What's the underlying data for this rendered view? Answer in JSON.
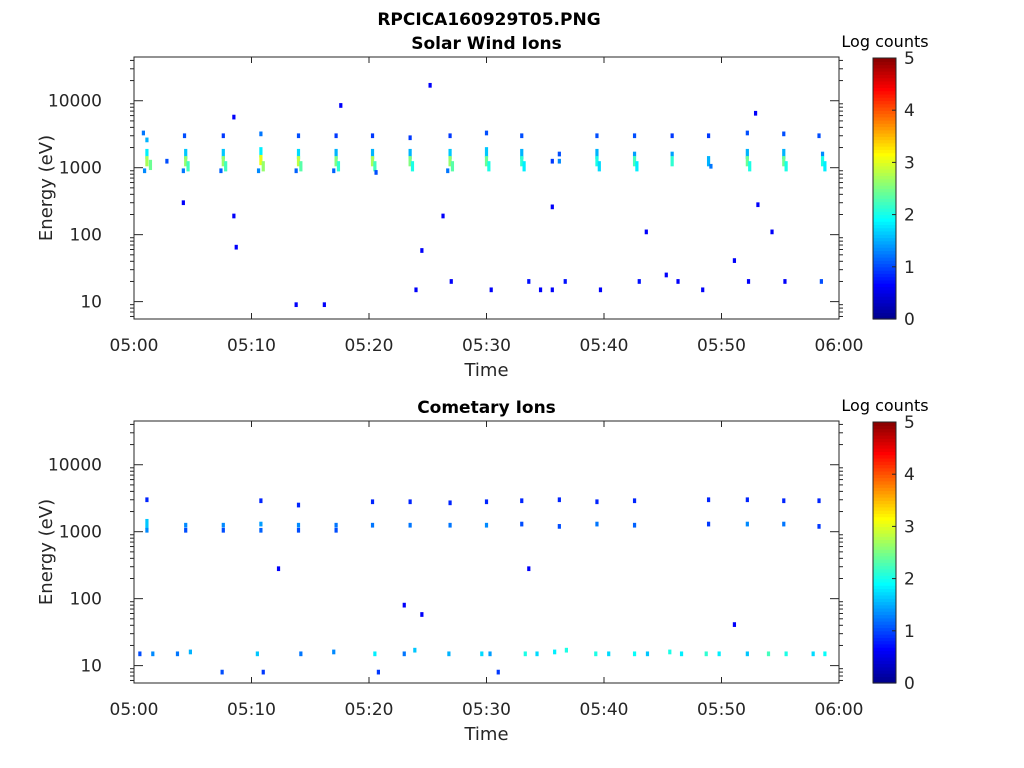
{
  "figure_title": "RPCICA160929T05.PNG",
  "colormap": {
    "label": "Log counts",
    "ticks": [
      "0",
      "1",
      "2",
      "3",
      "4",
      "5"
    ],
    "colors": [
      "#00008f",
      "#0000ff",
      "#0080ff",
      "#00ffff",
      "#80ff80",
      "#ffff00",
      "#ff8000",
      "#ff0000",
      "#800000"
    ]
  },
  "chart_data": [
    {
      "type": "heatmap",
      "title": "Solar Wind Ions",
      "xlabel": "Time",
      "ylabel": "Energy (eV)",
      "x_ticks": [
        "05:00",
        "05:10",
        "05:20",
        "05:30",
        "05:40",
        "05:50",
        "06:00"
      ],
      "xlim_minutes": [
        0,
        60
      ],
      "y_scale": "log",
      "ylim": [
        5.5,
        45000
      ],
      "y_ticks": [
        "10",
        "100",
        "1000",
        "10000"
      ],
      "colorbar": {
        "label": "Log counts",
        "range": [
          0,
          5
        ]
      },
      "grid": false,
      "sweep_times_min": [
        1.1,
        4.4,
        7.6,
        10.8,
        14.0,
        17.2,
        20.3,
        23.5,
        26.9,
        30.0,
        33.0,
        36.2,
        39.4,
        42.6,
        45.8,
        48.9,
        52.2,
        55.3,
        58.3
      ],
      "cells": [
        {
          "t": 0.8,
          "e": 3300,
          "v": 1.2
        },
        {
          "t": 1.1,
          "e": 2600,
          "v": 1.5
        },
        {
          "t": 1.1,
          "e": 1600,
          "v": 1.8
        },
        {
          "t": 1.1,
          "e": 1250,
          "v": 2.7
        },
        {
          "t": 1.4,
          "e": 1100,
          "v": 2.4
        },
        {
          "t": 0.9,
          "e": 900,
          "v": 1.3
        },
        {
          "t": 2.8,
          "e": 1250,
          "v": 1.0
        },
        {
          "t": 4.3,
          "e": 3000,
          "v": 1.0
        },
        {
          "t": 4.4,
          "e": 1600,
          "v": 1.6
        },
        {
          "t": 4.4,
          "e": 1250,
          "v": 2.6
        },
        {
          "t": 4.6,
          "e": 1050,
          "v": 2.2
        },
        {
          "t": 4.2,
          "e": 900,
          "v": 1.2
        },
        {
          "t": 7.6,
          "e": 3000,
          "v": 0.9
        },
        {
          "t": 7.6,
          "e": 1600,
          "v": 1.6
        },
        {
          "t": 7.6,
          "e": 1250,
          "v": 2.6
        },
        {
          "t": 7.8,
          "e": 1050,
          "v": 2.2
        },
        {
          "t": 7.4,
          "e": 900,
          "v": 1.1
        },
        {
          "t": 10.8,
          "e": 3200,
          "v": 1.2
        },
        {
          "t": 10.8,
          "e": 1700,
          "v": 1.8
        },
        {
          "t": 10.8,
          "e": 1300,
          "v": 3.0
        },
        {
          "t": 11.0,
          "e": 1050,
          "v": 2.6
        },
        {
          "t": 10.6,
          "e": 900,
          "v": 1.3
        },
        {
          "t": 14.0,
          "e": 3000,
          "v": 1.0
        },
        {
          "t": 14.0,
          "e": 1600,
          "v": 1.7
        },
        {
          "t": 14.0,
          "e": 1250,
          "v": 2.8
        },
        {
          "t": 14.2,
          "e": 1050,
          "v": 2.3
        },
        {
          "t": 13.8,
          "e": 900,
          "v": 1.1
        },
        {
          "t": 17.2,
          "e": 3000,
          "v": 0.9
        },
        {
          "t": 17.2,
          "e": 1600,
          "v": 1.5
        },
        {
          "t": 17.2,
          "e": 1250,
          "v": 2.5
        },
        {
          "t": 17.4,
          "e": 1050,
          "v": 2.1
        },
        {
          "t": 17.0,
          "e": 900,
          "v": 1.1
        },
        {
          "t": 20.3,
          "e": 3000,
          "v": 0.9
        },
        {
          "t": 20.3,
          "e": 1600,
          "v": 1.5
        },
        {
          "t": 20.3,
          "e": 1250,
          "v": 2.7
        },
        {
          "t": 20.5,
          "e": 1050,
          "v": 2.2
        },
        {
          "t": 20.6,
          "e": 850,
          "v": 1.0
        },
        {
          "t": 23.5,
          "e": 2800,
          "v": 0.9
        },
        {
          "t": 23.5,
          "e": 1600,
          "v": 1.5
        },
        {
          "t": 23.5,
          "e": 1250,
          "v": 2.5
        },
        {
          "t": 23.7,
          "e": 1050,
          "v": 2.0
        },
        {
          "t": 26.9,
          "e": 3000,
          "v": 0.9
        },
        {
          "t": 26.9,
          "e": 1600,
          "v": 1.6
        },
        {
          "t": 26.9,
          "e": 1250,
          "v": 2.6
        },
        {
          "t": 27.1,
          "e": 1050,
          "v": 2.3
        },
        {
          "t": 26.7,
          "e": 900,
          "v": 1.2
        },
        {
          "t": 30.0,
          "e": 3300,
          "v": 1.0
        },
        {
          "t": 30.0,
          "e": 1700,
          "v": 1.6
        },
        {
          "t": 30.0,
          "e": 1250,
          "v": 2.4
        },
        {
          "t": 30.2,
          "e": 1050,
          "v": 2.0
        },
        {
          "t": 33.0,
          "e": 3000,
          "v": 1.0
        },
        {
          "t": 33.0,
          "e": 1600,
          "v": 1.5
        },
        {
          "t": 33.0,
          "e": 1250,
          "v": 2.1
        },
        {
          "t": 33.2,
          "e": 1050,
          "v": 1.8
        },
        {
          "t": 36.2,
          "e": 1600,
          "v": 1.0
        },
        {
          "t": 36.2,
          "e": 1250,
          "v": 1.3
        },
        {
          "t": 35.6,
          "e": 1250,
          "v": 0.9
        },
        {
          "t": 39.4,
          "e": 3000,
          "v": 1.0
        },
        {
          "t": 39.4,
          "e": 1600,
          "v": 1.5
        },
        {
          "t": 39.4,
          "e": 1250,
          "v": 2.0
        },
        {
          "t": 39.6,
          "e": 1050,
          "v": 1.7
        },
        {
          "t": 42.6,
          "e": 3000,
          "v": 1.0
        },
        {
          "t": 42.6,
          "e": 1600,
          "v": 1.4
        },
        {
          "t": 42.6,
          "e": 1250,
          "v": 2.2
        },
        {
          "t": 42.8,
          "e": 1050,
          "v": 1.8
        },
        {
          "t": 45.8,
          "e": 3000,
          "v": 0.9
        },
        {
          "t": 45.8,
          "e": 1600,
          "v": 1.4
        },
        {
          "t": 45.8,
          "e": 1250,
          "v": 2.1
        },
        {
          "t": 48.9,
          "e": 3000,
          "v": 0.9
        },
        {
          "t": 48.9,
          "e": 1250,
          "v": 1.5
        },
        {
          "t": 49.1,
          "e": 1050,
          "v": 1.2
        },
        {
          "t": 52.2,
          "e": 3300,
          "v": 1.0
        },
        {
          "t": 52.2,
          "e": 1600,
          "v": 1.5
        },
        {
          "t": 52.2,
          "e": 1250,
          "v": 2.4
        },
        {
          "t": 52.4,
          "e": 1050,
          "v": 2.0
        },
        {
          "t": 55.3,
          "e": 3200,
          "v": 1.0
        },
        {
          "t": 55.3,
          "e": 1600,
          "v": 1.5
        },
        {
          "t": 55.3,
          "e": 1250,
          "v": 2.4
        },
        {
          "t": 55.5,
          "e": 1050,
          "v": 2.0
        },
        {
          "t": 58.3,
          "e": 3000,
          "v": 1.0
        },
        {
          "t": 58.6,
          "e": 1600,
          "v": 1.3
        },
        {
          "t": 58.6,
          "e": 1250,
          "v": 2.0
        },
        {
          "t": 58.8,
          "e": 1050,
          "v": 1.8
        },
        {
          "t": 8.5,
          "e": 5700,
          "v": 0.6
        },
        {
          "t": 17.6,
          "e": 8500,
          "v": 0.6
        },
        {
          "t": 25.2,
          "e": 17000,
          "v": 0.6
        },
        {
          "t": 52.9,
          "e": 6500,
          "v": 0.6
        },
        {
          "t": 4.2,
          "e": 300,
          "v": 0.6
        },
        {
          "t": 8.5,
          "e": 190,
          "v": 0.6
        },
        {
          "t": 8.7,
          "e": 65,
          "v": 0.6
        },
        {
          "t": 26.3,
          "e": 190,
          "v": 0.6
        },
        {
          "t": 35.6,
          "e": 260,
          "v": 0.6
        },
        {
          "t": 43.6,
          "e": 110,
          "v": 0.6
        },
        {
          "t": 53.1,
          "e": 280,
          "v": 0.6
        },
        {
          "t": 54.3,
          "e": 110,
          "v": 0.6
        },
        {
          "t": 24.5,
          "e": 58,
          "v": 0.6
        },
        {
          "t": 13.8,
          "e": 9,
          "v": 0.6
        },
        {
          "t": 16.2,
          "e": 9,
          "v": 0.6
        },
        {
          "t": 24.0,
          "e": 15,
          "v": 0.6
        },
        {
          "t": 27.0,
          "e": 20,
          "v": 0.6
        },
        {
          "t": 30.4,
          "e": 15,
          "v": 0.6
        },
        {
          "t": 33.6,
          "e": 20,
          "v": 0.7
        },
        {
          "t": 34.6,
          "e": 15,
          "v": 0.6
        },
        {
          "t": 35.6,
          "e": 15,
          "v": 0.6
        },
        {
          "t": 36.7,
          "e": 20,
          "v": 0.7
        },
        {
          "t": 39.7,
          "e": 15,
          "v": 0.6
        },
        {
          "t": 43.0,
          "e": 20,
          "v": 0.7
        },
        {
          "t": 45.3,
          "e": 25,
          "v": 0.6
        },
        {
          "t": 46.3,
          "e": 20,
          "v": 0.6
        },
        {
          "t": 48.4,
          "e": 15,
          "v": 0.6
        },
        {
          "t": 51.1,
          "e": 41,
          "v": 0.6
        },
        {
          "t": 52.3,
          "e": 20,
          "v": 0.6
        },
        {
          "t": 55.4,
          "e": 20,
          "v": 0.6
        },
        {
          "t": 58.5,
          "e": 20,
          "v": 1.0
        }
      ]
    },
    {
      "type": "heatmap",
      "title": "Cometary Ions",
      "xlabel": "Time",
      "ylabel": "Energy (eV)",
      "x_ticks": [
        "05:00",
        "05:10",
        "05:20",
        "05:30",
        "05:40",
        "05:50",
        "06:00"
      ],
      "xlim_minutes": [
        0,
        60
      ],
      "y_scale": "log",
      "ylim": [
        5.5,
        45000
      ],
      "y_ticks": [
        "10",
        "100",
        "1000",
        "10000"
      ],
      "colorbar": {
        "label": "Log counts",
        "range": [
          0,
          5
        ]
      },
      "grid": false,
      "cells": [
        {
          "t": 1.1,
          "e": 3000,
          "v": 0.8
        },
        {
          "t": 1.1,
          "e": 1300,
          "v": 1.6
        },
        {
          "t": 1.1,
          "e": 1050,
          "v": 1.3
        },
        {
          "t": 4.4,
          "e": 1250,
          "v": 1.3
        },
        {
          "t": 4.4,
          "e": 1050,
          "v": 1.0
        },
        {
          "t": 7.6,
          "e": 1250,
          "v": 1.3
        },
        {
          "t": 7.6,
          "e": 1050,
          "v": 1.0
        },
        {
          "t": 10.8,
          "e": 2900,
          "v": 0.8
        },
        {
          "t": 10.8,
          "e": 1300,
          "v": 1.4
        },
        {
          "t": 10.8,
          "e": 1050,
          "v": 1.1
        },
        {
          "t": 14.0,
          "e": 2500,
          "v": 0.8
        },
        {
          "t": 14.0,
          "e": 1250,
          "v": 1.3
        },
        {
          "t": 14.0,
          "e": 1050,
          "v": 1.0
        },
        {
          "t": 17.2,
          "e": 1250,
          "v": 1.2
        },
        {
          "t": 17.2,
          "e": 1050,
          "v": 1.0
        },
        {
          "t": 20.3,
          "e": 2800,
          "v": 0.8
        },
        {
          "t": 20.3,
          "e": 1250,
          "v": 1.2
        },
        {
          "t": 23.5,
          "e": 2800,
          "v": 0.8
        },
        {
          "t": 23.5,
          "e": 1250,
          "v": 1.2
        },
        {
          "t": 26.9,
          "e": 2700,
          "v": 0.8
        },
        {
          "t": 26.9,
          "e": 1250,
          "v": 1.2
        },
        {
          "t": 30.0,
          "e": 2800,
          "v": 0.8
        },
        {
          "t": 30.0,
          "e": 1250,
          "v": 1.3
        },
        {
          "t": 33.0,
          "e": 2900,
          "v": 0.8
        },
        {
          "t": 33.0,
          "e": 1300,
          "v": 1.0
        },
        {
          "t": 36.2,
          "e": 3000,
          "v": 0.8
        },
        {
          "t": 36.2,
          "e": 1200,
          "v": 1.0
        },
        {
          "t": 39.4,
          "e": 2800,
          "v": 0.8
        },
        {
          "t": 39.4,
          "e": 1300,
          "v": 1.2
        },
        {
          "t": 42.6,
          "e": 2900,
          "v": 0.8
        },
        {
          "t": 42.6,
          "e": 1250,
          "v": 1.1
        },
        {
          "t": 48.9,
          "e": 3000,
          "v": 0.8
        },
        {
          "t": 48.9,
          "e": 1300,
          "v": 0.9
        },
        {
          "t": 52.2,
          "e": 3000,
          "v": 0.8
        },
        {
          "t": 52.2,
          "e": 1300,
          "v": 1.3
        },
        {
          "t": 55.3,
          "e": 2900,
          "v": 0.8
        },
        {
          "t": 55.3,
          "e": 1300,
          "v": 1.2
        },
        {
          "t": 58.3,
          "e": 2900,
          "v": 0.8
        },
        {
          "t": 58.3,
          "e": 1200,
          "v": 0.9
        },
        {
          "t": 12.3,
          "e": 280,
          "v": 0.6
        },
        {
          "t": 33.6,
          "e": 280,
          "v": 0.6
        },
        {
          "t": 23.0,
          "e": 80,
          "v": 0.6
        },
        {
          "t": 24.5,
          "e": 58,
          "v": 0.6
        },
        {
          "t": 51.1,
          "e": 41,
          "v": 0.6
        },
        {
          "t": 0.5,
          "e": 15,
          "v": 1.0
        },
        {
          "t": 1.6,
          "e": 15,
          "v": 1.3
        },
        {
          "t": 3.7,
          "e": 15,
          "v": 1.2
        },
        {
          "t": 4.8,
          "e": 16,
          "v": 1.5
        },
        {
          "t": 7.5,
          "e": 8,
          "v": 1.0
        },
        {
          "t": 10.5,
          "e": 15,
          "v": 1.6
        },
        {
          "t": 11.0,
          "e": 8,
          "v": 0.9
        },
        {
          "t": 14.2,
          "e": 15,
          "v": 1.2
        },
        {
          "t": 17.0,
          "e": 16,
          "v": 1.3
        },
        {
          "t": 20.5,
          "e": 15,
          "v": 1.8
        },
        {
          "t": 20.8,
          "e": 8,
          "v": 0.9
        },
        {
          "t": 23.0,
          "e": 15,
          "v": 1.2
        },
        {
          "t": 23.9,
          "e": 17,
          "v": 1.6
        },
        {
          "t": 26.8,
          "e": 15,
          "v": 1.5
        },
        {
          "t": 29.6,
          "e": 15,
          "v": 1.7
        },
        {
          "t": 30.3,
          "e": 15,
          "v": 1.4
        },
        {
          "t": 31.0,
          "e": 8,
          "v": 0.9
        },
        {
          "t": 33.3,
          "e": 15,
          "v": 2.0
        },
        {
          "t": 34.3,
          "e": 15,
          "v": 1.7
        },
        {
          "t": 35.8,
          "e": 16,
          "v": 1.8
        },
        {
          "t": 36.8,
          "e": 17,
          "v": 2.0
        },
        {
          "t": 39.3,
          "e": 15,
          "v": 2.0
        },
        {
          "t": 40.4,
          "e": 15,
          "v": 1.7
        },
        {
          "t": 42.6,
          "e": 15,
          "v": 1.9
        },
        {
          "t": 43.7,
          "e": 15,
          "v": 1.6
        },
        {
          "t": 45.6,
          "e": 16,
          "v": 2.0
        },
        {
          "t": 46.6,
          "e": 15,
          "v": 1.8
        },
        {
          "t": 48.7,
          "e": 15,
          "v": 2.1
        },
        {
          "t": 49.8,
          "e": 15,
          "v": 1.8
        },
        {
          "t": 52.2,
          "e": 15,
          "v": 1.6
        },
        {
          "t": 54.0,
          "e": 15,
          "v": 2.2
        },
        {
          "t": 55.5,
          "e": 15,
          "v": 2.0
        },
        {
          "t": 57.8,
          "e": 15,
          "v": 1.7
        },
        {
          "t": 58.8,
          "e": 15,
          "v": 1.9
        }
      ]
    }
  ]
}
